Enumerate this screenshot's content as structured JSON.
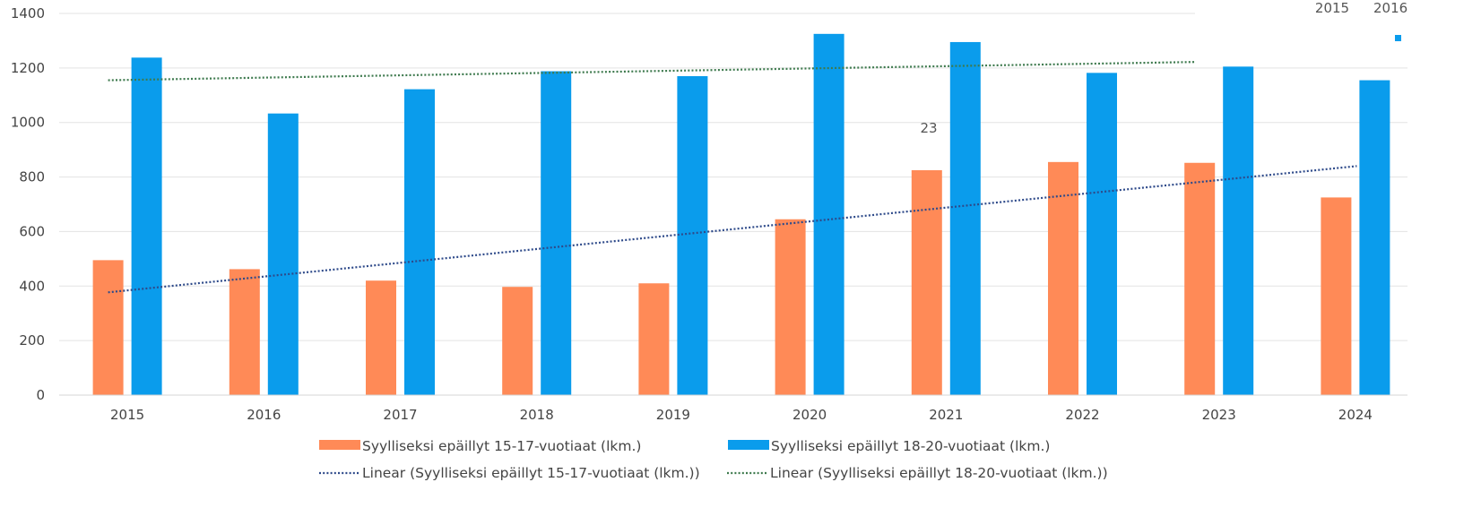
{
  "chart_data": {
    "type": "bar",
    "categories": [
      "2015",
      "2016",
      "2017",
      "2018",
      "2019",
      "2020",
      "2021",
      "2022",
      "2023",
      "2024"
    ],
    "series": [
      {
        "name": "Syylliseksi epäillyt 15-17-vuotiaat (lkm.)",
        "color": "#FF8A57",
        "values": [
          495,
          462,
          420,
          397,
          410,
          645,
          825,
          855,
          852,
          725
        ]
      },
      {
        "name": "Syylliseksi epäillyt 18-20-vuotiaat (lkm.)",
        "color": "#0A9CEC",
        "values": [
          1238,
          1033,
          1122,
          1188,
          1170,
          1325,
          1295,
          1182,
          1205,
          1155
        ]
      }
    ],
    "trendlines": [
      {
        "name": "Linear (Syylliseksi epäillyt 15-17-vuotiaat (lkm.))",
        "color": "#2E4A8A",
        "start": 377,
        "end": 840
      },
      {
        "name": "Linear (Syylliseksi epäillyt 18-20-vuotiaat (lkm.))",
        "color": "#3E7A4E",
        "start": 1155,
        "end": 1222
      }
    ],
    "ylim": [
      0,
      1400
    ],
    "yticks": [
      0,
      200,
      400,
      600,
      800,
      1000,
      1200,
      1400
    ],
    "grid": true,
    "legend_position": "bottom",
    "stray_labels": [
      "23",
      "2015",
      "2016"
    ]
  }
}
